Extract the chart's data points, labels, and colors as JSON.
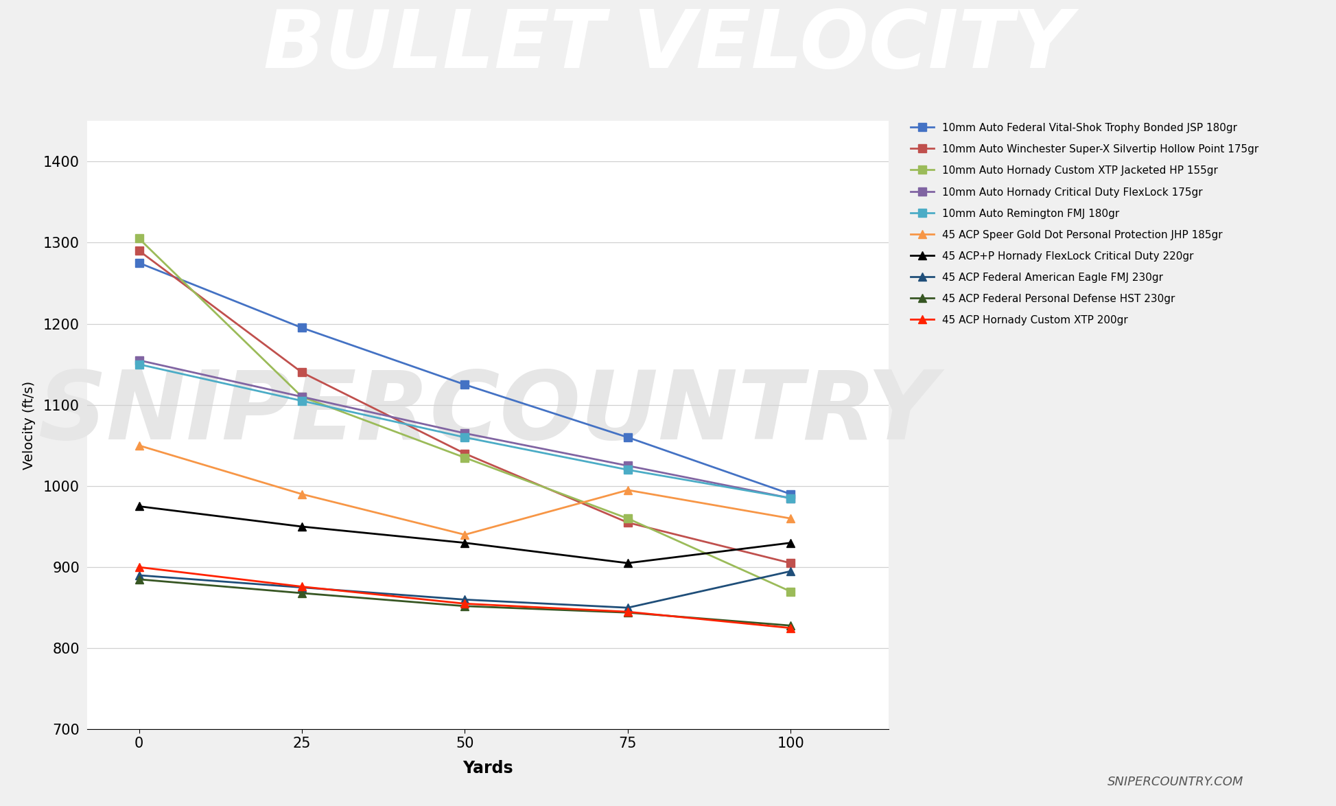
{
  "title": "BULLET VELOCITY",
  "title_bg": "#6e6e6e",
  "red_bar_color": "#e8635a",
  "ylabel": "Velocity (ft/s)",
  "xlabel": "Yards",
  "x_values": [
    0,
    25,
    50,
    75,
    100
  ],
  "ylim": [
    700,
    1450
  ],
  "yticks": [
    700,
    800,
    900,
    1000,
    1100,
    1200,
    1300,
    1400
  ],
  "figure_bg": "#f0f0f0",
  "plot_bg": "#ffffff",
  "series": [
    {
      "label": "10mm Auto Federal Vital-Shok Trophy Bonded JSP 180gr",
      "values": [
        1275,
        1195,
        1125,
        1060,
        990
      ],
      "color": "#4472C4",
      "marker": "s"
    },
    {
      "label": "10mm Auto Winchester Super-X Silvertip Hollow Point 175gr",
      "values": [
        1290,
        1140,
        1040,
        955,
        905
      ],
      "color": "#C0504D",
      "marker": "s"
    },
    {
      "label": "10mm Auto Hornady Custom XTP Jacketed HP 155gr",
      "values": [
        1305,
        1110,
        1035,
        960,
        870
      ],
      "color": "#9BBB59",
      "marker": "s"
    },
    {
      "label": "10mm Auto Hornady Critical Duty FlexLock 175gr",
      "values": [
        1155,
        1110,
        1065,
        1025,
        985
      ],
      "color": "#8064A2",
      "marker": "s"
    },
    {
      "label": "10mm Auto Remington FMJ 180gr",
      "values": [
        1150,
        1105,
        1060,
        1020,
        985
      ],
      "color": "#4BACC6",
      "marker": "s"
    },
    {
      "label": "45 ACP Speer Gold Dot Personal Protection JHP 185gr",
      "values": [
        1050,
        990,
        940,
        995,
        960
      ],
      "color": "#F79646",
      "marker": "^"
    },
    {
      "label": "45 ACP+P Hornady FlexLock Critical Duty 220gr",
      "values": [
        975,
        950,
        930,
        905,
        930
      ],
      "color": "#000000",
      "marker": "^"
    },
    {
      "label": "45 ACP Federal American Eagle FMJ 230gr",
      "values": [
        890,
        875,
        860,
        850,
        895
      ],
      "color": "#1F4E79",
      "marker": "^"
    },
    {
      "label": "45 ACP Federal Personal Defense HST 230gr",
      "values": [
        885,
        868,
        852,
        844,
        828
      ],
      "color": "#375623",
      "marker": "^"
    },
    {
      "label": "45 ACP Hornady Custom XTP 200gr",
      "values": [
        900,
        876,
        855,
        845,
        825
      ],
      "color": "#FF2200",
      "marker": "^"
    }
  ],
  "watermark_text": "SNIPERCOUNTRY",
  "footer_text": "SNIPERCOUNTRY.COM"
}
